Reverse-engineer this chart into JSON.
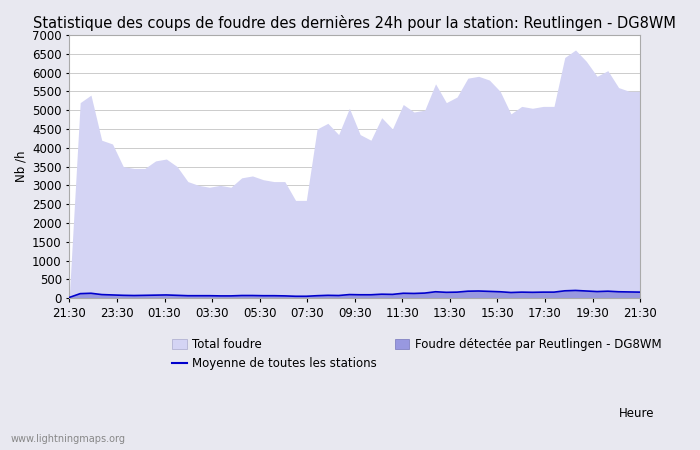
{
  "title": "Statistique des coups de foudre des dernières 24h pour la station: Reutlingen - DG8WM",
  "ylabel": "Nb /h",
  "xlabel": "Heure",
  "watermark": "www.lightningmaps.org",
  "ylim": [
    0,
    7000
  ],
  "yticks": [
    0,
    500,
    1000,
    1500,
    2000,
    2500,
    3000,
    3500,
    4000,
    4500,
    5000,
    5500,
    6000,
    6500,
    7000
  ],
  "xtick_labels": [
    "21:30",
    "23:30",
    "01:30",
    "03:30",
    "05:30",
    "07:30",
    "09:30",
    "11:30",
    "13:30",
    "15:30",
    "17:30",
    "19:30",
    "21:30"
  ],
  "fig_bg_color": "#e8e8f0",
  "plot_bg_color": "#ffffff",
  "fill_total_color": "#d4d4f4",
  "fill_station_color": "#9898e0",
  "line_color": "#0000cc",
  "grid_color": "#cccccc",
  "title_fontsize": 10.5,
  "tick_fontsize": 8.5,
  "legend_fontsize": 8.5,
  "total_foudre": [
    100,
    5200,
    5400,
    4200,
    4100,
    3500,
    3450,
    3450,
    3650,
    3700,
    3500,
    3100,
    3000,
    2950,
    3000,
    2950,
    3200,
    3250,
    3150,
    3100,
    3100,
    2600,
    2600,
    4500,
    4650,
    4350,
    5050,
    4350,
    4200,
    4800,
    4500,
    5150,
    4950,
    5000,
    5700,
    5200,
    5350,
    5850,
    5900,
    5800,
    5500,
    4900,
    5100,
    5050,
    5100,
    5100,
    6400,
    6600,
    6300,
    5900,
    6050,
    5600,
    5500,
    5500
  ],
  "station_foudre": [
    20,
    130,
    140,
    100,
    90,
    80,
    75,
    80,
    85,
    90,
    80,
    70,
    70,
    70,
    65,
    65,
    75,
    75,
    70,
    70,
    65,
    55,
    55,
    70,
    80,
    75,
    100,
    95,
    95,
    110,
    105,
    135,
    130,
    140,
    175,
    160,
    165,
    190,
    195,
    185,
    175,
    155,
    165,
    160,
    165,
    165,
    200,
    210,
    195,
    180,
    190,
    175,
    170,
    165
  ],
  "avg_line": [
    20,
    120,
    130,
    95,
    85,
    75,
    70,
    75,
    80,
    85,
    75,
    65,
    65,
    65,
    60,
    60,
    70,
    70,
    65,
    65,
    60,
    50,
    50,
    65,
    75,
    70,
    95,
    90,
    90,
    105,
    100,
    130,
    125,
    135,
    170,
    155,
    160,
    185,
    190,
    180,
    170,
    150,
    160,
    155,
    160,
    160,
    195,
    205,
    190,
    175,
    185,
    170,
    165,
    160
  ]
}
